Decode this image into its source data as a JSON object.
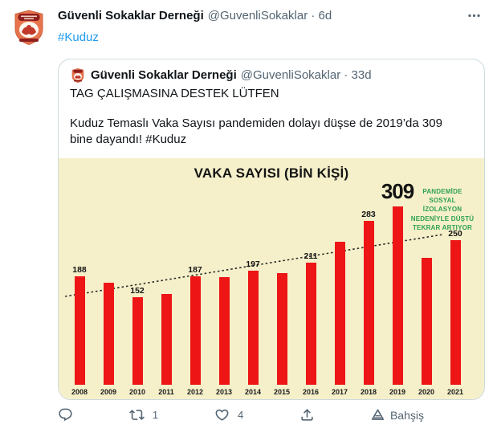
{
  "tweet": {
    "author": "Güvenli Sokaklar Derneği",
    "handle": "@GuvenliSokaklar",
    "separator": "·",
    "time": "6d",
    "text_hashtag": "#Kuduz"
  },
  "quote": {
    "author": "Güvenli Sokaklar Derneği",
    "handle": "@GuvenliSokaklar",
    "separator": "·",
    "time": "33d",
    "line1": "TAG ÇALIŞMASINA DESTEK LÜTFEN",
    "line2": "Kuduz Temaslı Vaka Sayısı pandemiden dolayı düşse de 2019’da 309 bine dayandı! #Kuduz"
  },
  "chart_data": {
    "type": "bar",
    "title": "VAKA SAYISI (BİN KİŞİ)",
    "categories": [
      "2008",
      "2009",
      "2010",
      "2011",
      "2012",
      "2013",
      "2014",
      "2015",
      "2016",
      "2017",
      "2018",
      "2019",
      "2020",
      "2021"
    ],
    "values": [
      188,
      177,
      152,
      157,
      187,
      186,
      197,
      193,
      211,
      247,
      283,
      309,
      220,
      250
    ],
    "data_labels": [
      "188",
      "",
      "152",
      "",
      "187",
      "",
      "197",
      "",
      "211",
      "",
      "283",
      "309",
      "",
      "250"
    ],
    "highlight_year": "2019",
    "annotation_lines": [
      "PANDEMİDE",
      "SOSYAL",
      "İZOLASYON",
      "NEDENİYLE DÜŞTÜ",
      "TEKRAR ARTIYOR"
    ],
    "trendline": true,
    "legend": false,
    "grid": false,
    "ylim": [
      0,
      320
    ],
    "bar_color": "#ed1515",
    "background_color": "#f5f0ca",
    "annotation_color": "#2ea14e"
  },
  "actions": {
    "retweet_count": "1",
    "like_count": "4",
    "tip_label": "Bahşiş"
  },
  "colors": {
    "link_blue": "#1d9bf0",
    "secondary_text": "#536471",
    "card_border": "#cfd9de"
  }
}
